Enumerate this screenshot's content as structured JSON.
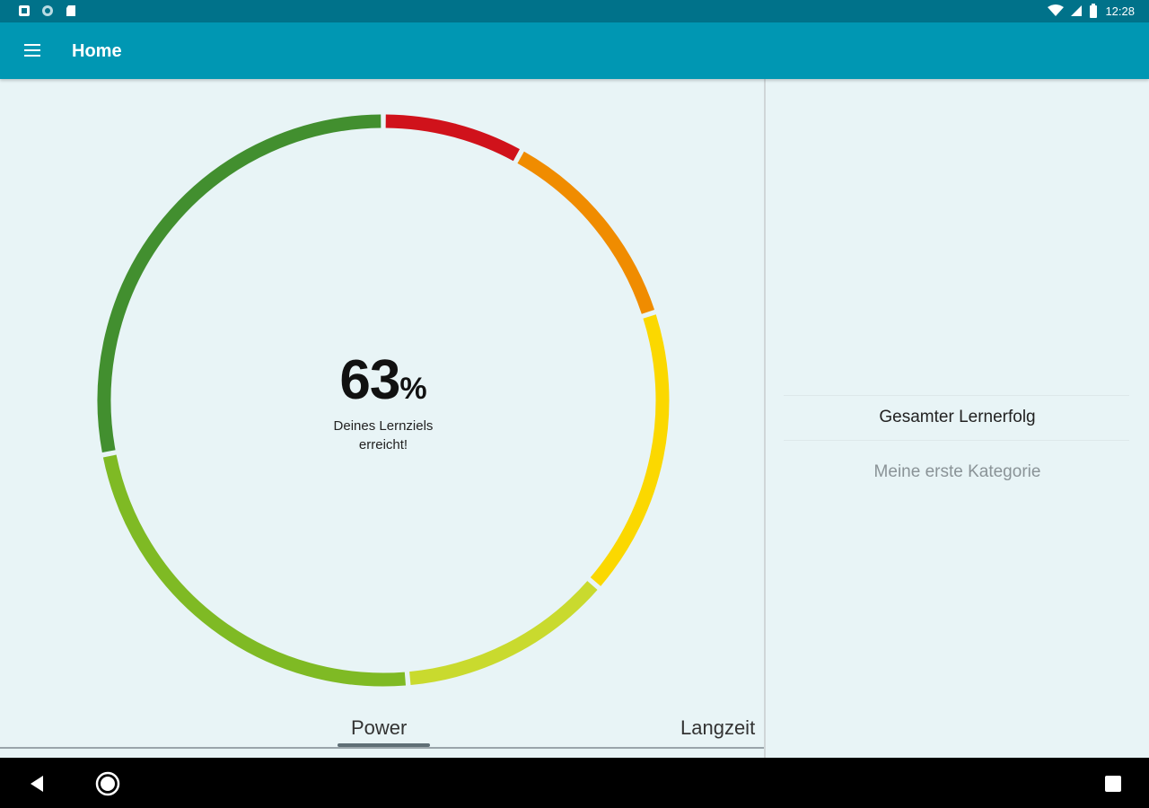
{
  "status_bar": {
    "time": "12:28",
    "left_icons": [
      "notification-icon",
      "sync-icon",
      "sd-card-icon"
    ],
    "right_icons": [
      "wifi-icon",
      "signal-icon",
      "battery-icon"
    ]
  },
  "app_bar": {
    "title": "Home",
    "menu_icon": "hamburger-menu-icon",
    "background": "#0097b3"
  },
  "progress": {
    "percent_value": "63",
    "percent_sign": "%",
    "label_line1": "Deines Lernziels",
    "label_line2": "erreicht!",
    "ring_segments": [
      {
        "color": "#d0121b",
        "start_deg": 0,
        "end_deg": 29
      },
      {
        "color": "#f08c00",
        "start_deg": 29,
        "end_deg": 72
      },
      {
        "color": "#fbd800",
        "start_deg": 72,
        "end_deg": 131
      },
      {
        "color": "#c9da2e",
        "start_deg": 131,
        "end_deg": 175
      },
      {
        "color": "#7fba24",
        "start_deg": 175,
        "end_deg": 259
      },
      {
        "color": "#428f2f",
        "start_deg": 259,
        "end_deg": 360
      }
    ]
  },
  "tabs": [
    {
      "label": "Power",
      "active": true
    },
    {
      "label": "Langzeit",
      "active": false
    }
  ],
  "right_panel": {
    "items": [
      {
        "label": "Gesamter Lernerfolg",
        "selected": true
      },
      {
        "label": "Meine erste Kategorie",
        "selected": false
      }
    ]
  },
  "nav_bar": {
    "icons": [
      "back-icon",
      "home-icon",
      "recents-icon"
    ]
  }
}
